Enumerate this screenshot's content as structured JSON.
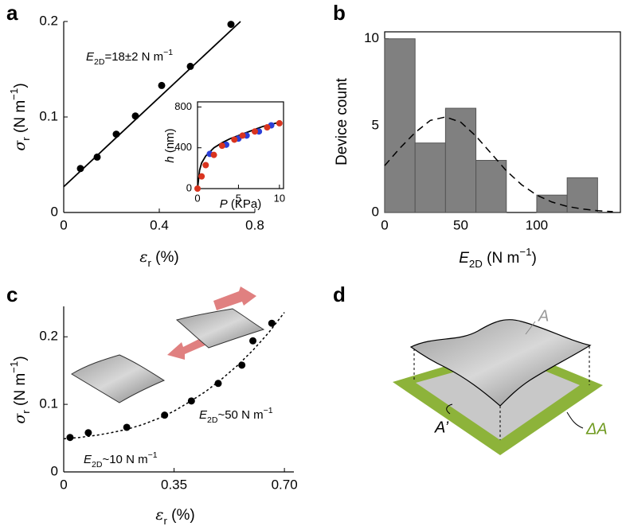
{
  "panel_labels": [
    "a",
    "b",
    "c",
    "d"
  ],
  "chart_data": [
    {
      "type": "scatter",
      "x_label": [
        "ε",
        "r",
        " (%)"
      ],
      "y_label": [
        "σ",
        "r",
        " (N m",
        "−1",
        ")"
      ],
      "annotations": [
        [
          "E",
          "2D",
          "=18±2 N m",
          "−1"
        ]
      ],
      "xlim": [
        0,
        0.8
      ],
      "xticks": [
        0,
        0.4,
        0.8
      ],
      "ylim": [
        0,
        0.2
      ],
      "yticks": [
        0,
        0.1,
        0.2
      ],
      "series": [
        {
          "color": "#000000",
          "x": [
            0.07,
            0.14,
            0.22,
            0.3,
            0.41,
            0.53,
            0.7
          ],
          "values": [
            0.046,
            0.058,
            0.082,
            0.101,
            0.133,
            0.153,
            0.197
          ]
        },
        {
          "kind": "line",
          "color": "#000000",
          "x": [
            0,
            0.74
          ],
          "values": [
            0.027,
            0.2
          ]
        }
      ]
    },
    {
      "type": "scatter",
      "x_label": [
        "P",
        " (KPa)"
      ],
      "y_label": [
        "h",
        " (nm)"
      ],
      "xlim": [
        0,
        10.5
      ],
      "xticks": [
        0,
        5,
        10
      ],
      "ylim": [
        0,
        850
      ],
      "yticks": [
        0,
        400,
        800
      ],
      "series": [
        {
          "kind": "line",
          "color": "#000000",
          "x": [
            0,
            0.25,
            0.5,
            1,
            2,
            3,
            4,
            5,
            6,
            7,
            8,
            9,
            10
          ],
          "values": [
            0,
            180,
            250,
            320,
            400,
            450,
            490,
            520,
            550,
            580,
            610,
            630,
            650
          ]
        },
        {
          "color": "#2b3fd8",
          "x": [
            1.5,
            3.5,
            5,
            6,
            7.5,
            9
          ],
          "values": [
            340,
            430,
            490,
            520,
            560,
            620
          ]
        },
        {
          "color": "#d9341f",
          "x": [
            0,
            0.5,
            1,
            2,
            3,
            4.5,
            5.5,
            7,
            8.5,
            10
          ],
          "values": [
            0,
            120,
            230,
            330,
            420,
            480,
            520,
            560,
            600,
            640
          ]
        }
      ]
    },
    {
      "type": "histogram",
      "x_label": [
        "E",
        "2D",
        " (N m",
        "−1",
        ")"
      ],
      "y_label": [
        "Device count"
      ],
      "bins": [
        0,
        20,
        40,
        60,
        80,
        100,
        120,
        140
      ],
      "values": [
        10,
        4,
        6,
        3,
        0,
        1,
        2
      ],
      "color": "#808080",
      "xlim": [
        0,
        155
      ],
      "xticks": [
        0,
        50,
        100
      ],
      "ylim": [
        0,
        10.4
      ],
      "yticks": [
        0,
        5,
        10
      ],
      "series": [
        {
          "kind": "line",
          "dashed": true,
          "color": "#000000",
          "x": [
            0,
            10,
            20,
            30,
            40,
            50,
            60,
            70,
            80,
            90,
            100,
            110,
            120,
            130,
            140,
            150
          ],
          "values": [
            2.7,
            3.7,
            4.6,
            5.3,
            5.5,
            5.2,
            4.4,
            3.4,
            2.4,
            1.6,
            1.0,
            0.6,
            0.35,
            0.2,
            0.1,
            0.05
          ]
        }
      ]
    },
    {
      "type": "scatter",
      "x_label": [
        "ε",
        "r",
        " (%)"
      ],
      "y_label": [
        "σ",
        "r",
        " (N m",
        "−1",
        ")"
      ],
      "annotations": [
        [
          "E",
          "2D",
          "~10 N m",
          "−1"
        ],
        [
          "E",
          "2D",
          "~50 N m",
          "−1"
        ]
      ],
      "xlim": [
        0,
        0.73
      ],
      "xticks": [
        0,
        0.35,
        {
          "value": 0.7,
          "label": "0.70"
        }
      ],
      "ylim": [
        0,
        0.245
      ],
      "yticks": [
        0,
        0.1,
        0.2
      ],
      "series": [
        {
          "kind": "line",
          "dashed": true,
          "color": "#000000",
          "x": [
            0,
            0.05,
            0.1,
            0.15,
            0.2,
            0.25,
            0.3,
            0.35,
            0.4,
            0.45,
            0.5,
            0.55,
            0.6,
            0.65,
            0.7
          ],
          "values": [
            0.049,
            0.051,
            0.054,
            0.058,
            0.063,
            0.07,
            0.079,
            0.09,
            0.104,
            0.119,
            0.137,
            0.157,
            0.18,
            0.206,
            0.236
          ]
        },
        {
          "color": "#000000",
          "x": [
            0.02,
            0.078,
            0.2,
            0.32,
            0.405,
            0.49,
            0.565,
            0.6,
            0.66
          ],
          "values": [
            0.051,
            0.058,
            0.066,
            0.084,
            0.105,
            0.131,
            0.158,
            0.194,
            0.22
          ]
        }
      ]
    }
  ],
  "diagram": {
    "labels": [
      "A",
      "A’",
      "ΔA"
    ]
  }
}
